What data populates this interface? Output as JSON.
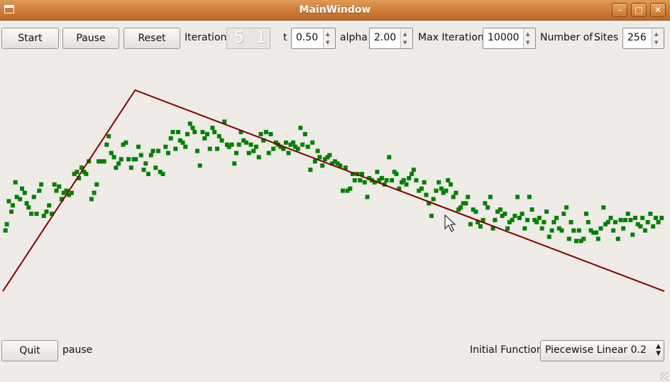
{
  "window": {
    "title": "MainWindow",
    "minimize": "–",
    "maximize": "□",
    "close": "✕"
  },
  "toolbar": {
    "start_label": "Start",
    "pause_label": "Pause",
    "reset_label": "Reset",
    "iteration_label": "Iteration",
    "iteration_display": "5 1",
    "t_label": "t",
    "t_value": "0.50",
    "alpha_label": "alpha",
    "alpha_value": "2.00",
    "max_iteration_label": "Max Iteration",
    "max_iteration_value": "10000",
    "sites_label_1": "Number of",
    "sites_label_2": "Sites",
    "sites_value": "256"
  },
  "bottom": {
    "quit_label": "Quit",
    "status_text": "pause",
    "initial_function_label": "Initial Function",
    "initial_function_value": "Piecewise Linear 0.2"
  },
  "colors": {
    "line": "#800000",
    "points": "#008000",
    "titlebar": "#cf7a36"
  },
  "chart_data": {
    "type": "scatter",
    "x_range": [
      0,
      1
    ],
    "y_range": [
      0,
      1
    ],
    "line": {
      "x": [
        0,
        0.2,
        1
      ],
      "y": [
        0.04,
        1.0,
        0.04
      ]
    },
    "points": [
      [
        0.004,
        0.33
      ],
      [
        0.006,
        0.36
      ],
      [
        0.009,
        0.47
      ],
      [
        0.013,
        0.42
      ],
      [
        0.015,
        0.45
      ],
      [
        0.019,
        0.56
      ],
      [
        0.021,
        0.49
      ],
      [
        0.026,
        0.48
      ],
      [
        0.029,
        0.53
      ],
      [
        0.033,
        0.51
      ],
      [
        0.036,
        0.46
      ],
      [
        0.039,
        0.44
      ],
      [
        0.043,
        0.41
      ],
      [
        0.047,
        0.49
      ],
      [
        0.051,
        0.41
      ],
      [
        0.055,
        0.52
      ],
      [
        0.058,
        0.55
      ],
      [
        0.062,
        0.4
      ],
      [
        0.066,
        0.42
      ],
      [
        0.07,
        0.45
      ],
      [
        0.074,
        0.41
      ],
      [
        0.078,
        0.55
      ],
      [
        0.081,
        0.52
      ],
      [
        0.085,
        0.54
      ],
      [
        0.089,
        0.48
      ],
      [
        0.092,
        0.51
      ],
      [
        0.096,
        0.52
      ],
      [
        0.1,
        0.5
      ],
      [
        0.104,
        0.51
      ],
      [
        0.108,
        0.6
      ],
      [
        0.112,
        0.61
      ],
      [
        0.115,
        0.58
      ],
      [
        0.119,
        0.63
      ],
      [
        0.123,
        0.61
      ],
      [
        0.126,
        0.6
      ],
      [
        0.13,
        0.66
      ],
      [
        0.134,
        0.48
      ],
      [
        0.138,
        0.51
      ],
      [
        0.142,
        0.55
      ],
      [
        0.145,
        0.66
      ],
      [
        0.149,
        0.66
      ],
      [
        0.153,
        0.66
      ],
      [
        0.157,
        0.74
      ],
      [
        0.16,
        0.78
      ],
      [
        0.164,
        0.7
      ],
      [
        0.168,
        0.68
      ],
      [
        0.171,
        0.63
      ],
      [
        0.175,
        0.65
      ],
      [
        0.179,
        0.67
      ],
      [
        0.182,
        0.74
      ],
      [
        0.186,
        0.75
      ],
      [
        0.19,
        0.67
      ],
      [
        0.194,
        0.63
      ],
      [
        0.198,
        0.67
      ],
      [
        0.201,
        0.67
      ],
      [
        0.205,
        0.73
      ],
      [
        0.209,
        0.69
      ],
      [
        0.213,
        0.62
      ],
      [
        0.216,
        0.65
      ],
      [
        0.22,
        0.6
      ],
      [
        0.224,
        0.69
      ],
      [
        0.227,
        0.71
      ],
      [
        0.231,
        0.63
      ],
      [
        0.235,
        0.71
      ],
      [
        0.238,
        0.61
      ],
      [
        0.242,
        0.6
      ],
      [
        0.246,
        0.73
      ],
      [
        0.25,
        0.7
      ],
      [
        0.254,
        0.77
      ],
      [
        0.257,
        0.8
      ],
      [
        0.261,
        0.72
      ],
      [
        0.265,
        0.8
      ],
      [
        0.268,
        0.76
      ],
      [
        0.272,
        0.75
      ],
      [
        0.276,
        0.73
      ],
      [
        0.279,
        0.79
      ],
      [
        0.283,
        0.84
      ],
      [
        0.287,
        0.82
      ],
      [
        0.29,
        0.8
      ],
      [
        0.294,
        0.71
      ],
      [
        0.298,
        0.64
      ],
      [
        0.302,
        0.8
      ],
      [
        0.305,
        0.77
      ],
      [
        0.309,
        0.79
      ],
      [
        0.313,
        0.72
      ],
      [
        0.317,
        0.82
      ],
      [
        0.32,
        0.8
      ],
      [
        0.324,
        0.72
      ],
      [
        0.327,
        0.78
      ],
      [
        0.331,
        0.76
      ],
      [
        0.335,
        0.85
      ],
      [
        0.339,
        0.74
      ],
      [
        0.342,
        0.73
      ],
      [
        0.346,
        0.74
      ],
      [
        0.35,
        0.65
      ],
      [
        0.353,
        0.7
      ],
      [
        0.357,
        0.74
      ],
      [
        0.36,
        0.8
      ],
      [
        0.364,
        0.76
      ],
      [
        0.368,
        0.75
      ],
      [
        0.372,
        0.7
      ],
      [
        0.375,
        0.74
      ],
      [
        0.379,
        0.71
      ],
      [
        0.383,
        0.73
      ],
      [
        0.387,
        0.68
      ],
      [
        0.39,
        0.79
      ],
      [
        0.394,
        0.76
      ],
      [
        0.398,
        0.8
      ],
      [
        0.402,
        0.7
      ],
      [
        0.405,
        0.79
      ],
      [
        0.409,
        0.72
      ],
      [
        0.413,
        0.75
      ],
      [
        0.416,
        0.74
      ],
      [
        0.42,
        0.73
      ],
      [
        0.424,
        0.72
      ],
      [
        0.428,
        0.75
      ],
      [
        0.432,
        0.7
      ],
      [
        0.435,
        0.74
      ],
      [
        0.439,
        0.75
      ],
      [
        0.442,
        0.73
      ],
      [
        0.446,
        0.72
      ],
      [
        0.45,
        0.82
      ],
      [
        0.453,
        0.74
      ],
      [
        0.457,
        0.79
      ],
      [
        0.461,
        0.73
      ],
      [
        0.465,
        0.62
      ],
      [
        0.468,
        0.75
      ],
      [
        0.472,
        0.66
      ],
      [
        0.476,
        0.71
      ],
      [
        0.479,
        0.68
      ],
      [
        0.483,
        0.64
      ],
      [
        0.487,
        0.67
      ],
      [
        0.491,
        0.68
      ],
      [
        0.494,
        0.69
      ],
      [
        0.498,
        0.65
      ],
      [
        0.502,
        0.66
      ],
      [
        0.506,
        0.65
      ],
      [
        0.51,
        0.64
      ],
      [
        0.514,
        0.52
      ],
      [
        0.518,
        0.63
      ],
      [
        0.521,
        0.52
      ],
      [
        0.525,
        0.53
      ],
      [
        0.529,
        0.6
      ],
      [
        0.532,
        0.57
      ],
      [
        0.536,
        0.6
      ],
      [
        0.54,
        0.57
      ],
      [
        0.543,
        0.6
      ],
      [
        0.547,
        0.56
      ],
      [
        0.551,
        0.49
      ],
      [
        0.554,
        0.58
      ],
      [
        0.558,
        0.57
      ],
      [
        0.562,
        0.56
      ],
      [
        0.566,
        0.61
      ],
      [
        0.569,
        0.57
      ],
      [
        0.573,
        0.58
      ],
      [
        0.577,
        0.55
      ],
      [
        0.58,
        0.57
      ],
      [
        0.584,
        0.68
      ],
      [
        0.588,
        0.57
      ],
      [
        0.592,
        0.61
      ],
      [
        0.595,
        0.6
      ],
      [
        0.599,
        0.53
      ],
      [
        0.603,
        0.56
      ],
      [
        0.606,
        0.57
      ],
      [
        0.61,
        0.55
      ],
      [
        0.614,
        0.58
      ],
      [
        0.618,
        0.6
      ],
      [
        0.621,
        0.62
      ],
      [
        0.625,
        0.57
      ],
      [
        0.629,
        0.52
      ],
      [
        0.633,
        0.53
      ],
      [
        0.637,
        0.56
      ],
      [
        0.64,
        0.5
      ],
      [
        0.644,
        0.46
      ],
      [
        0.648,
        0.4
      ],
      [
        0.651,
        0.48
      ],
      [
        0.655,
        0.52
      ],
      [
        0.659,
        0.56
      ],
      [
        0.663,
        0.53
      ],
      [
        0.666,
        0.51
      ],
      [
        0.67,
        0.52
      ],
      [
        0.673,
        0.57
      ],
      [
        0.677,
        0.55
      ],
      [
        0.681,
        0.49
      ],
      [
        0.685,
        0.51
      ],
      [
        0.689,
        0.43
      ],
      [
        0.692,
        0.44
      ],
      [
        0.696,
        0.46
      ],
      [
        0.7,
        0.46
      ],
      [
        0.703,
        0.49
      ],
      [
        0.707,
        0.36
      ],
      [
        0.711,
        0.43
      ],
      [
        0.715,
        0.42
      ],
      [
        0.718,
        0.37
      ],
      [
        0.722,
        0.35
      ],
      [
        0.726,
        0.38
      ],
      [
        0.729,
        0.46
      ],
      [
        0.733,
        0.44
      ],
      [
        0.737,
        0.49
      ],
      [
        0.741,
        0.34
      ],
      [
        0.744,
        0.38
      ],
      [
        0.748,
        0.42
      ],
      [
        0.752,
        0.43
      ],
      [
        0.755,
        0.4
      ],
      [
        0.759,
        0.41
      ],
      [
        0.763,
        0.34
      ],
      [
        0.766,
        0.37
      ],
      [
        0.77,
        0.38
      ],
      [
        0.774,
        0.4
      ],
      [
        0.778,
        0.49
      ],
      [
        0.781,
        0.39
      ],
      [
        0.785,
        0.41
      ],
      [
        0.789,
        0.34
      ],
      [
        0.793,
        0.38
      ],
      [
        0.796,
        0.49
      ],
      [
        0.8,
        0.43
      ],
      [
        0.804,
        0.38
      ],
      [
        0.807,
        0.37
      ],
      [
        0.811,
        0.39
      ],
      [
        0.815,
        0.34
      ],
      [
        0.818,
        0.37
      ],
      [
        0.822,
        0.42
      ],
      [
        0.826,
        0.3
      ],
      [
        0.83,
        0.33
      ],
      [
        0.833,
        0.37
      ],
      [
        0.837,
        0.39
      ],
      [
        0.841,
        0.34
      ],
      [
        0.845,
        0.33
      ],
      [
        0.848,
        0.41
      ],
      [
        0.852,
        0.44
      ],
      [
        0.856,
        0.29
      ],
      [
        0.859,
        0.37
      ],
      [
        0.863,
        0.33
      ],
      [
        0.867,
        0.28
      ],
      [
        0.871,
        0.33
      ],
      [
        0.874,
        0.28
      ],
      [
        0.878,
        0.29
      ],
      [
        0.882,
        0.41
      ],
      [
        0.885,
        0.37
      ],
      [
        0.889,
        0.33
      ],
      [
        0.893,
        0.32
      ],
      [
        0.897,
        0.32
      ],
      [
        0.9,
        0.29
      ],
      [
        0.904,
        0.34
      ],
      [
        0.908,
        0.44
      ],
      [
        0.911,
        0.36
      ],
      [
        0.915,
        0.37
      ],
      [
        0.919,
        0.39
      ],
      [
        0.923,
        0.33
      ],
      [
        0.926,
        0.37
      ],
      [
        0.93,
        0.29
      ],
      [
        0.934,
        0.38
      ],
      [
        0.938,
        0.34
      ],
      [
        0.941,
        0.38
      ],
      [
        0.945,
        0.41
      ],
      [
        0.949,
        0.38
      ],
      [
        0.952,
        0.31
      ],
      [
        0.956,
        0.39
      ],
      [
        0.96,
        0.36
      ],
      [
        0.964,
        0.35
      ],
      [
        0.967,
        0.39
      ],
      [
        0.971,
        0.33
      ],
      [
        0.975,
        0.37
      ],
      [
        0.979,
        0.41
      ],
      [
        0.983,
        0.35
      ],
      [
        0.987,
        0.39
      ],
      [
        0.991,
        0.37
      ],
      [
        0.996,
        0.39
      ]
    ]
  }
}
